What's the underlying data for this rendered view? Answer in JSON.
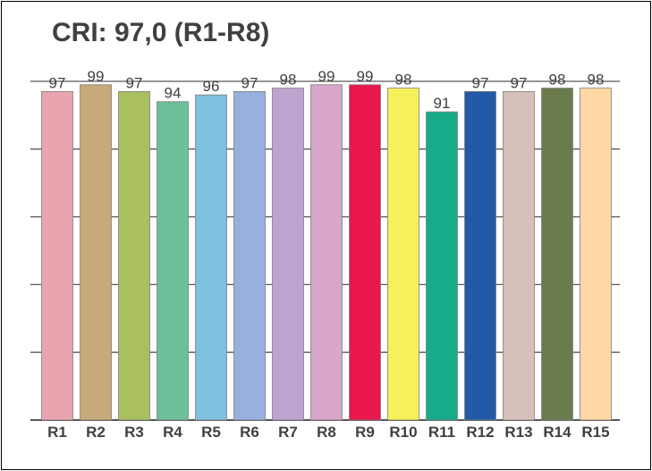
{
  "chart_data": {
    "type": "bar",
    "title": "CRI: 97,0 (R1-R8)",
    "xlabel": "",
    "ylabel": "",
    "ylim": [
      0,
      100
    ],
    "grid": true,
    "categories": [
      "R1",
      "R2",
      "R3",
      "R4",
      "R5",
      "R6",
      "R7",
      "R8",
      "R9",
      "R10",
      "R11",
      "R12",
      "R13",
      "R14",
      "R15"
    ],
    "values": [
      97,
      99,
      97,
      94,
      96,
      97,
      98,
      99,
      99,
      98,
      91,
      97,
      97,
      98,
      98
    ],
    "bar_colors": [
      "#e8a5b0",
      "#c8aa7a",
      "#aabf60",
      "#6cc09a",
      "#7fc0de",
      "#98b0de",
      "#bea2d0",
      "#d7a6c8",
      "#e8174c",
      "#f6f05a",
      "#18ab8a",
      "#225aa8",
      "#d7bfba",
      "#6a7c4c",
      "#fed7a4"
    ]
  }
}
